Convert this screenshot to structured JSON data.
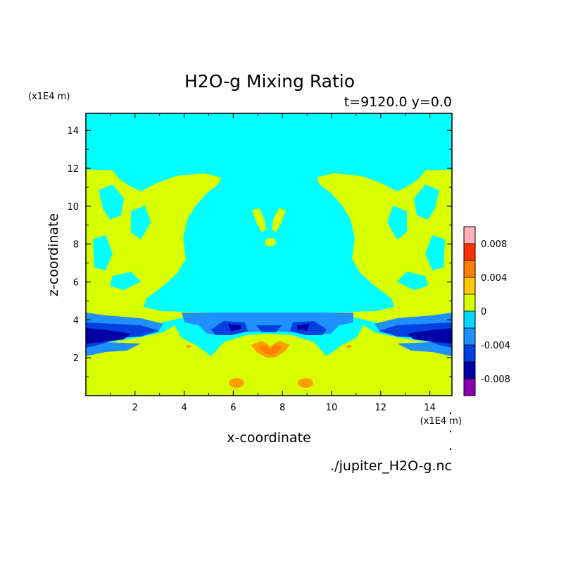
{
  "chart_data": {
    "type": "heatmap",
    "title": "H2O-g Mixing Ratio",
    "subtitle": "t=9120.0 y=0.0",
    "xlabel": "x-coordinate",
    "ylabel": "z-coordinate",
    "x_units": "(x1E4 m)",
    "y_units": "(x1E4 m)",
    "xlim": [
      0,
      14.9
    ],
    "ylim": [
      0,
      14.9
    ],
    "x_ticks": [
      2,
      4,
      6,
      8,
      10,
      12,
      14
    ],
    "y_ticks": [
      2,
      4,
      6,
      8,
      10,
      12,
      14
    ],
    "x_tick_labels": [
      "2",
      "4",
      "6",
      "8",
      "10",
      "12",
      "14"
    ],
    "y_tick_labels": [
      "2",
      "4",
      "6",
      "8",
      "10",
      "12",
      "14"
    ],
    "colorbar": {
      "levels": [
        -0.01,
        -0.008,
        -0.006,
        -0.004,
        -0.002,
        0,
        0.002,
        0.004,
        0.006,
        0.008,
        0.01
      ],
      "colors": [
        "#8a00b0",
        "#0000a8",
        "#0040e0",
        "#1e90ff",
        "#00d8ff",
        "#d8ff00",
        "#ffc800",
        "#ff7f00",
        "#ff3000",
        "#e00000"
      ],
      "top_color": "#ffb0b8",
      "tick_values": [
        0.008,
        0.004,
        0,
        -0.004,
        -0.008
      ],
      "tick_labels": [
        "0.008",
        "0.004",
        "0",
        "-0.004",
        "-0.008"
      ]
    },
    "grid": false,
    "legend": "colorbar right",
    "source_file": "./jupiter_H2O-g.nc"
  },
  "colors": {
    "cyan": "#00ffff",
    "yellow_green": "#d8ff00",
    "light_blue": "#1e90ff",
    "blue": "#0040e0",
    "dark_blue": "#0000a8",
    "orange": "#ffa000",
    "dark_orange": "#ff7f00"
  }
}
